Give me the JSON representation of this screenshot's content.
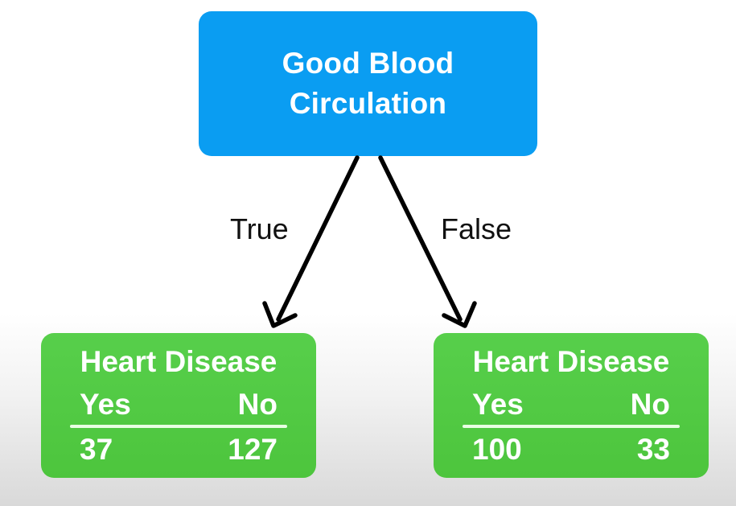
{
  "root": {
    "line1": "Good Blood",
    "line2": "Circulation"
  },
  "edges": {
    "true_label": "True",
    "false_label": "False"
  },
  "left_leaf": {
    "title": "Heart Disease",
    "yes_label": "Yes",
    "no_label": "No",
    "yes_value": "37",
    "no_value": "127"
  },
  "right_leaf": {
    "title": "Heart Disease",
    "yes_label": "Yes",
    "no_label": "No",
    "yes_value": "100",
    "no_value": "33"
  },
  "colors": {
    "root_fill": "#0a9df2",
    "leaf_fill": "#4dc53d",
    "edge_color": "#000000"
  }
}
